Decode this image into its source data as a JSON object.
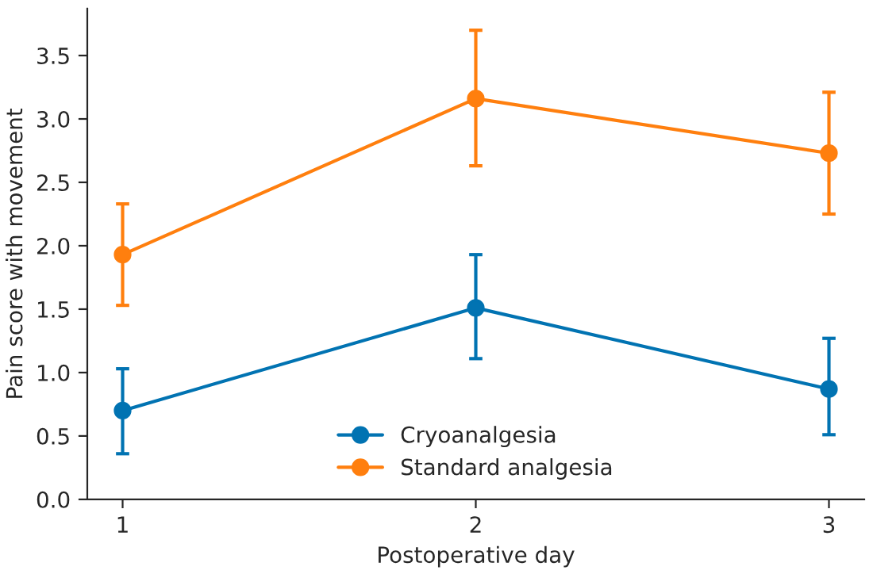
{
  "chart_data": {
    "type": "line",
    "xlabel": "Postoperative day",
    "ylabel": "Pain score with movement",
    "x": [
      1,
      2,
      3
    ],
    "xlim": [
      0.9,
      3.1
    ],
    "xticks": [
      1,
      2,
      3
    ],
    "ylim": [
      0,
      3.87
    ],
    "yticks": [
      {
        "value": 0,
        "label": "0.0"
      },
      {
        "value": 0.5,
        "label": "0.5"
      },
      {
        "value": 1,
        "label": "1.0"
      },
      {
        "value": 1.5,
        "label": "1.5"
      },
      {
        "value": 2,
        "label": "2.0"
      },
      {
        "value": 2.5,
        "label": "2.5"
      },
      {
        "value": 3,
        "label": "3.0"
      },
      {
        "value": 3.5,
        "label": "3.5"
      }
    ],
    "series": [
      {
        "name": "Cryoanalgesia",
        "color": "#0173b2",
        "values": [
          0.7,
          1.51,
          0.87
        ],
        "errors": [
          [
            0.36,
            1.03
          ],
          [
            1.11,
            1.93
          ],
          [
            0.51,
            1.27
          ]
        ]
      },
      {
        "name": "Standard analgesia",
        "color": "#ff7f0e",
        "values": [
          1.93,
          3.16,
          2.73
        ],
        "errors": [
          [
            1.53,
            2.33
          ],
          [
            2.63,
            3.7
          ],
          [
            2.25,
            3.21
          ]
        ]
      }
    ],
    "marker": "circle",
    "line_style": "solid",
    "legend": "bottom",
    "grid": false
  }
}
